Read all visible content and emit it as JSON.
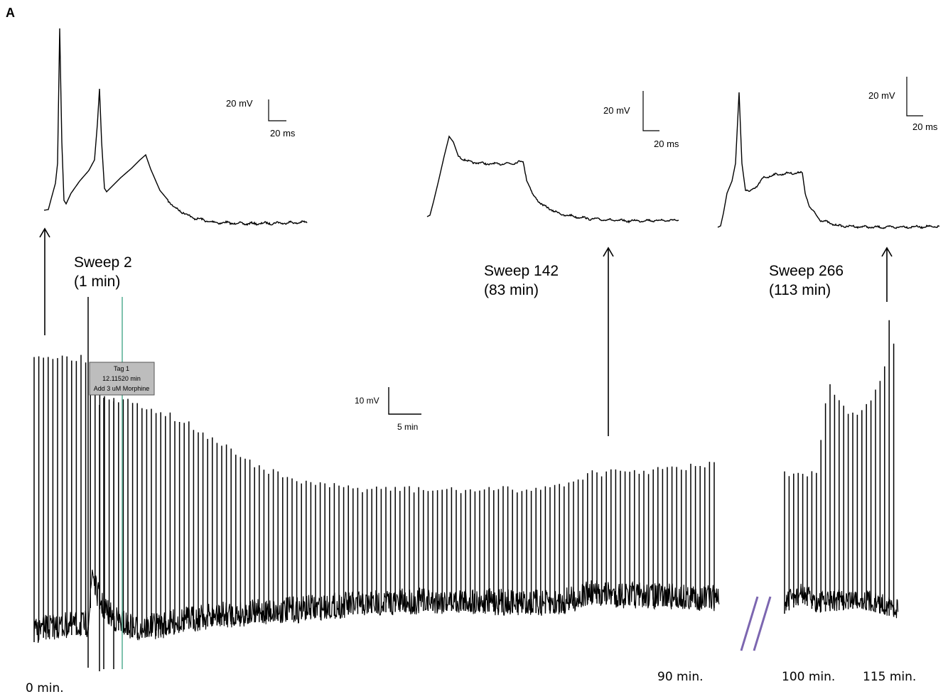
{
  "panel_label": "A",
  "sweeps": [
    {
      "label": "Sweep 2",
      "time": "(1 min)"
    },
    {
      "label": "Sweep 142",
      "time": "(83 min)"
    },
    {
      "label": "Sweep 266",
      "time": "(113 min)"
    }
  ],
  "inset_scale_bars": [
    {
      "voltage": "20 mV",
      "time": "20 ms"
    },
    {
      "voltage": "20 mV",
      "time": "20 ms"
    },
    {
      "voltage": "20 mV",
      "time": "20 ms"
    }
  ],
  "main_scale_bar": {
    "voltage": "10 mV",
    "time": "5 min"
  },
  "tag": {
    "line1": "Tag 1",
    "line2": "12.11520 min",
    "line3": "Add 3 uM Morphine"
  },
  "time_labels": [
    "0 min.",
    "90 min.",
    "100 min.",
    "115 min."
  ],
  "colors": {
    "trace": "#000000",
    "tag_line": "#5fb39a",
    "break_mark": "#7c66b0",
    "tag_box": "#bdbdbd"
  }
}
